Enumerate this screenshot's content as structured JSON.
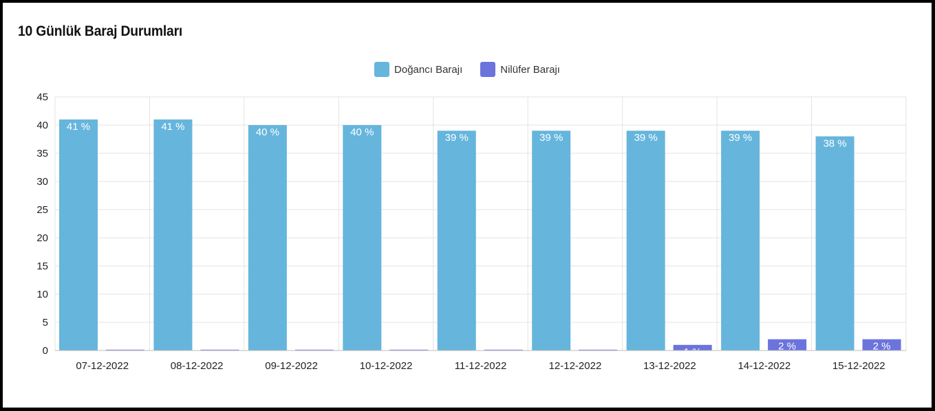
{
  "chart_data": {
    "type": "bar",
    "title": "10 Günlük Baraj Durumları",
    "categories": [
      "07-12-2022",
      "08-12-2022",
      "09-12-2022",
      "10-12-2022",
      "11-12-2022",
      "12-12-2022",
      "13-12-2022",
      "14-12-2022",
      "15-12-2022"
    ],
    "series": [
      {
        "name": "Doğancı Barajı",
        "color": "#66b5dc",
        "values": [
          41,
          41,
          40,
          40,
          39,
          39,
          39,
          39,
          38
        ]
      },
      {
        "name": "Nilüfer Barajı",
        "color": "#6b73dc",
        "values": [
          0,
          0,
          0,
          0,
          0,
          0,
          1,
          2,
          2
        ]
      }
    ],
    "ylim": [
      0,
      45
    ],
    "yticks": [
      0,
      5,
      10,
      15,
      20,
      25,
      30,
      35,
      40,
      45
    ],
    "label_suffix": " %",
    "legend_position": "top-center",
    "grid": true
  }
}
